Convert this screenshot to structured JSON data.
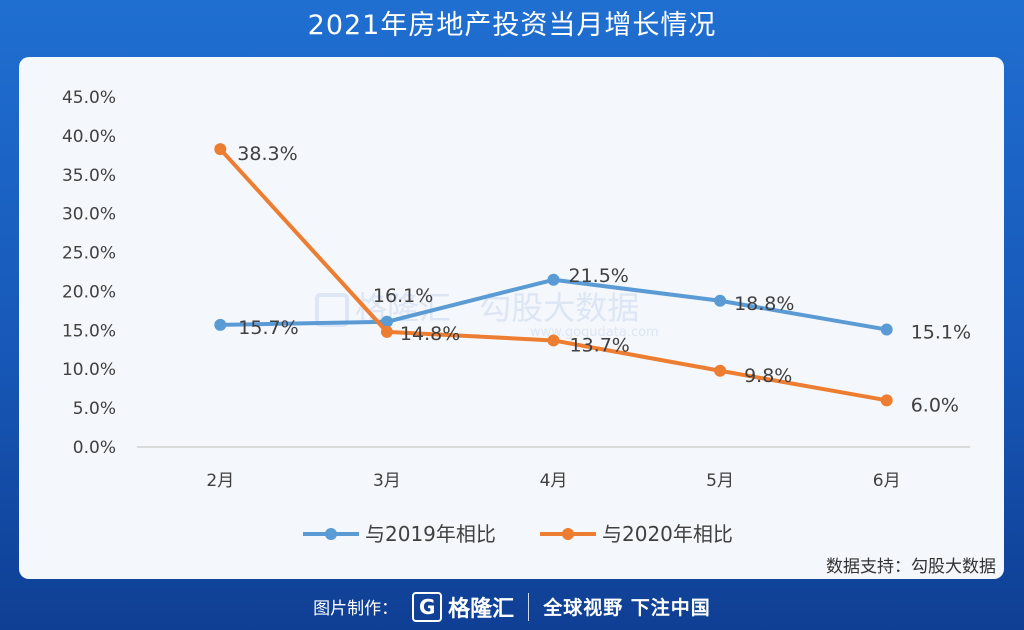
{
  "title": "2021年房地产投资当月增长情况",
  "source": "数据支持：勾股大数据",
  "footer": {
    "made_by": "图片制作：",
    "logo_letter": "G",
    "brand": "格隆汇",
    "slogan": "全球视野 下注中国"
  },
  "watermark": {
    "left": "格隆汇",
    "right": "勾股大数据",
    "url": "www.gogudata.com"
  },
  "colors": {
    "series_2019": "#5b9bd5",
    "series_2020": "#ed7d31"
  },
  "chart_data": {
    "type": "line",
    "categories": [
      "2月",
      "3月",
      "4月",
      "5月",
      "6月"
    ],
    "yticks": [
      "0.0%",
      "5.0%",
      "10.0%",
      "15.0%",
      "20.0%",
      "25.0%",
      "30.0%",
      "35.0%",
      "40.0%",
      "45.0%"
    ],
    "ylim": [
      0,
      45
    ],
    "grid": false,
    "legend_position": "bottom",
    "series": [
      {
        "name": "与2019年相比",
        "values": [
          15.7,
          16.1,
          21.5,
          18.8,
          15.1
        ],
        "labels": [
          "15.7%",
          "16.1%",
          "21.5%",
          "18.8%",
          "15.1%"
        ]
      },
      {
        "name": "与2020年相比",
        "values": [
          38.3,
          14.8,
          13.7,
          9.8,
          6.0
        ],
        "labels": [
          "38.3%",
          "14.8%",
          "13.7%",
          "9.8%",
          "6.0%"
        ]
      }
    ]
  }
}
